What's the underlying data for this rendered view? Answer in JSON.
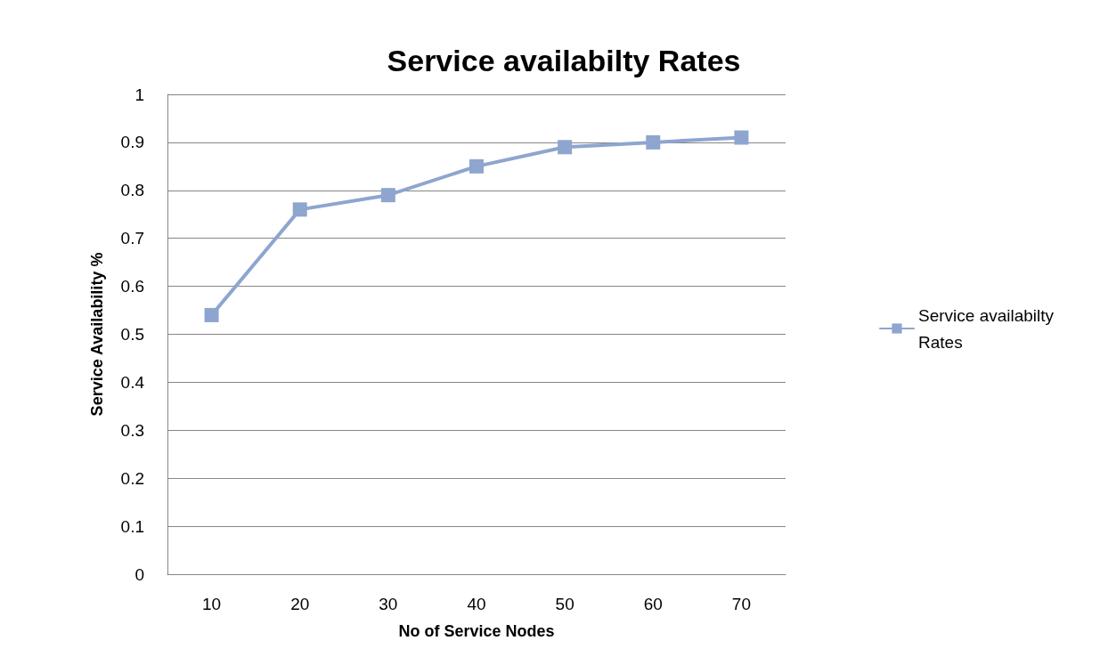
{
  "chart_data": {
    "type": "line",
    "title": "Service availabilty Rates",
    "xlabel": "No of Service Nodes",
    "ylabel": "Service Availability %",
    "categories": [
      "10",
      "20",
      "30",
      "40",
      "50",
      "60",
      "70"
    ],
    "series": [
      {
        "name": "Service availabilty Rates",
        "color": "#8ea5cf",
        "values": [
          0.54,
          0.76,
          0.79,
          0.85,
          0.89,
          0.9,
          0.91
        ]
      }
    ],
    "ylim": [
      0,
      1
    ],
    "yticks": [
      0,
      0.1,
      0.2,
      0.3,
      0.4,
      0.5,
      0.6,
      0.7,
      0.8,
      0.9,
      1
    ],
    "grid": "y",
    "legend": "right",
    "marker": "square",
    "line_style": "solid"
  }
}
